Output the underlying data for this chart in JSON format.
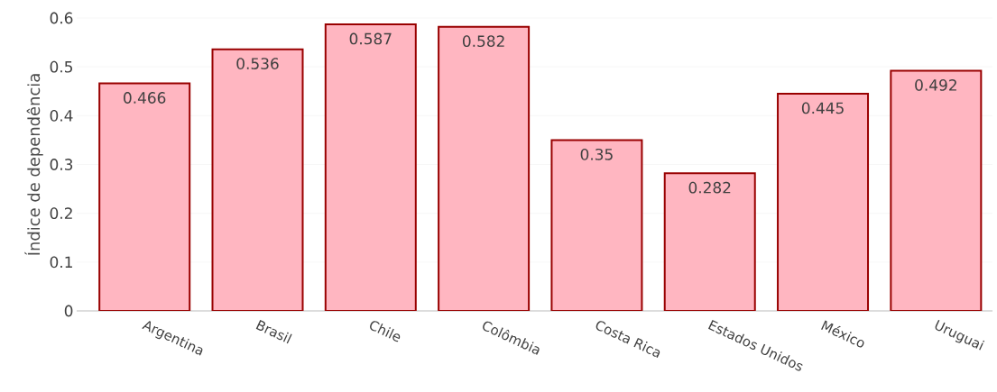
{
  "chart_data": {
    "type": "bar",
    "ylabel": "Índice de dependência",
    "categories": [
      "Argentina",
      "Brasil",
      "Chile",
      "Colômbia",
      "Costa Rica",
      "Estados Unidos",
      "México",
      "Uruguai"
    ],
    "values": [
      0.466,
      0.536,
      0.587,
      0.582,
      0.35,
      0.282,
      0.445,
      0.492
    ],
    "color": "#ffb6c1",
    "ylim": [
      0,
      0.6
    ],
    "yticks": [
      0,
      0.1,
      0.2,
      0.3,
      0.4,
      0.5,
      0.6
    ],
    "grid": "y",
    "data_labels": true
  }
}
